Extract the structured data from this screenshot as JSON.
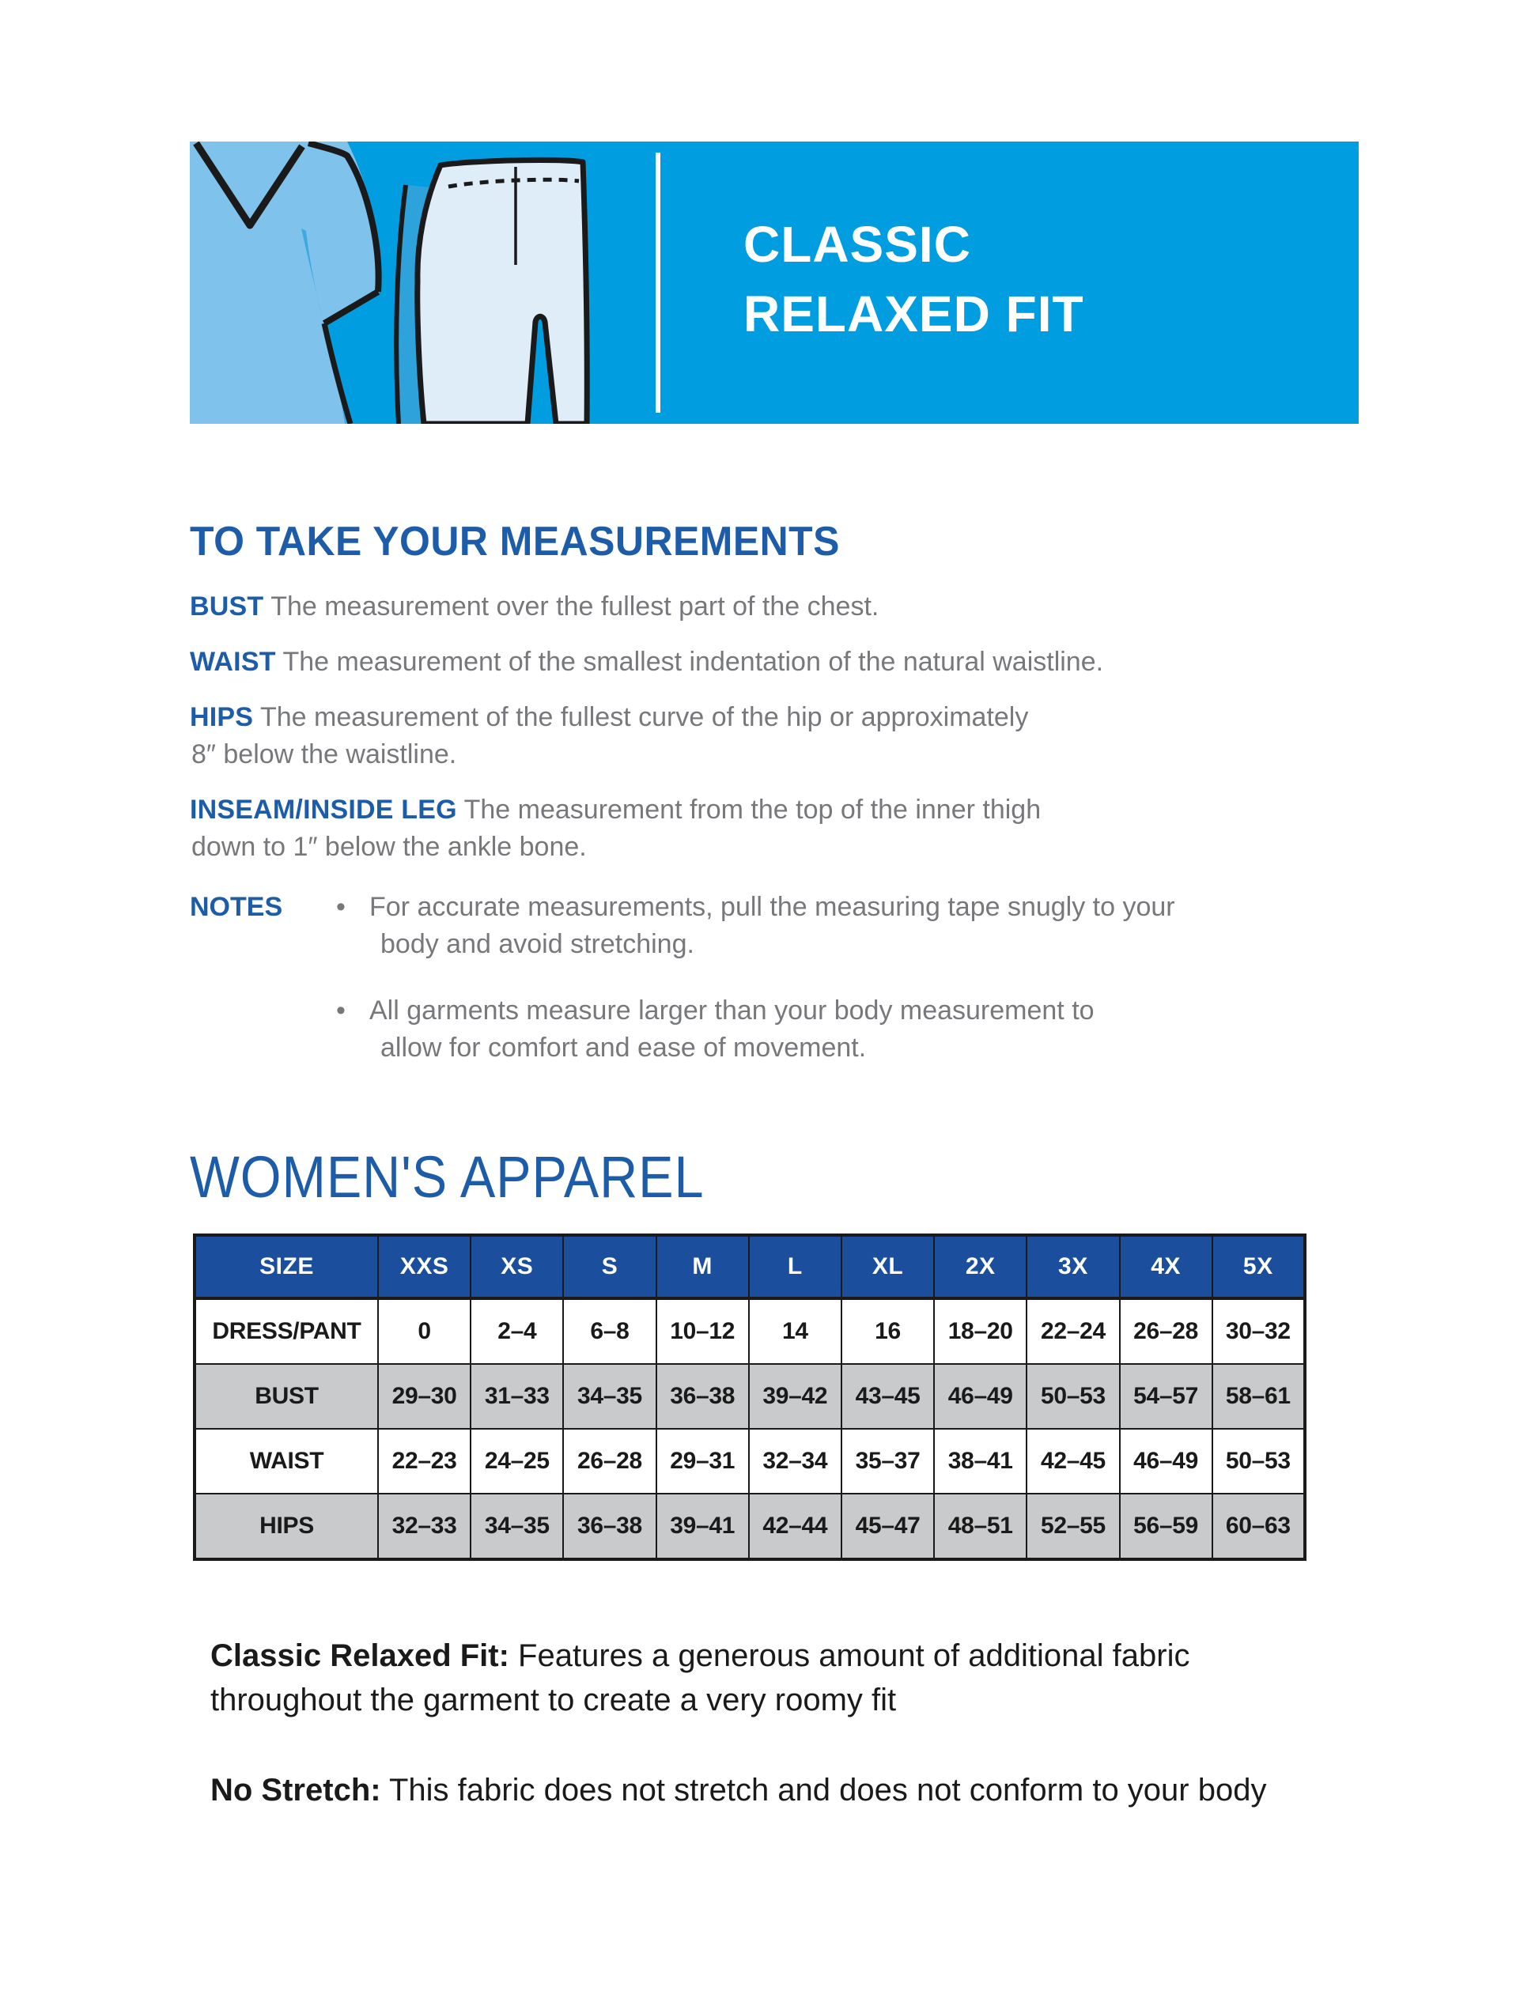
{
  "banner": {
    "title_line1": "CLASSIC",
    "title_line2": "RELAXED FIT",
    "illustration": "scrub-top-and-pants-icon",
    "bg_color": "#009EE0"
  },
  "measurements": {
    "heading": "TO TAKE YOUR MEASUREMENTS",
    "items": [
      {
        "label": "BUST",
        "line1": "The measurement over the fullest part of the chest.",
        "line2": ""
      },
      {
        "label": "WAIST",
        "line1": "The measurement of the smallest indentation of the natural waistline.",
        "line2": ""
      },
      {
        "label": "HIPS",
        "line1": "The measurement of the fullest curve of the hip or approximately",
        "line2": "8″ below the waistline."
      },
      {
        "label": "INSEAM/INSIDE LEG",
        "line1": "The measurement from the top of the inner thigh",
        "line2": "down to 1″ below the ankle bone."
      }
    ],
    "notes": {
      "label": "NOTES",
      "bullets": [
        {
          "line1": "For accurate measurements, pull the measuring tape snugly to your",
          "line2": "body and avoid stretching."
        },
        {
          "line1": "All garments measure larger than your body measurement to",
          "line2": "allow for comfort and ease of movement."
        }
      ]
    }
  },
  "size_chart": {
    "heading": "WOMEN'S APPAREL",
    "columns": [
      "SIZE",
      "XXS",
      "XS",
      "S",
      "M",
      "L",
      "XL",
      "2X",
      "3X",
      "4X",
      "5X"
    ],
    "rows": [
      {
        "label": "DRESS/PANT",
        "shaded": false,
        "values": [
          "0",
          "2–4",
          "6–8",
          "10–12",
          "14",
          "16",
          "18–20",
          "22–24",
          "26–28",
          "30–32"
        ]
      },
      {
        "label": "BUST",
        "shaded": true,
        "values": [
          "29–30",
          "31–33",
          "34–35",
          "36–38",
          "39–42",
          "43–45",
          "46–49",
          "50–53",
          "54–57",
          "58–61"
        ]
      },
      {
        "label": "WAIST",
        "shaded": false,
        "values": [
          "22–23",
          "24–25",
          "26–28",
          "29–31",
          "32–34",
          "35–37",
          "38–41",
          "42–45",
          "46–49",
          "50–53"
        ]
      },
      {
        "label": "HIPS",
        "shaded": true,
        "values": [
          "32–33",
          "34–35",
          "36–38",
          "39–41",
          "42–44",
          "45–47",
          "48–51",
          "52–55",
          "56–59",
          "60–63"
        ]
      }
    ]
  },
  "footnotes": [
    {
      "label": "Classic Relaxed Fit:",
      "line1": "Features a generous amount of additional fabric",
      "line2": "throughout the garment to create a very roomy fit"
    },
    {
      "label": "No Stretch:",
      "line1": "This fabric does not stretch and does not conform to your body",
      "line2": ""
    }
  ],
  "colors": {
    "banner_blue": "#009EE0",
    "scrub_top_blue": "#7FC2EC",
    "scrub_shadow_blue": "#3EA9DE",
    "back_leg_blue": "#2EA2DB",
    "pants_light_blue": "#DEEDF8",
    "heading_blue": "#1D5CA9",
    "table_header_blue": "#1B4F9D",
    "table_shaded_gray": "#C9CACC",
    "body_text_gray": "#77787B",
    "outline_black": "#1A1A1A"
  }
}
